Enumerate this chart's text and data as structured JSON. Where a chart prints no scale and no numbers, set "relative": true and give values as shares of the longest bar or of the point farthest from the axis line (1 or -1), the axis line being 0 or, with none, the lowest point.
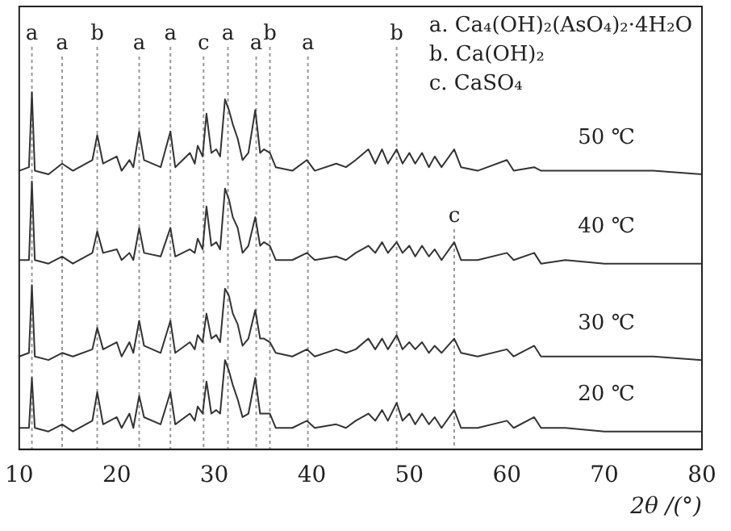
{
  "chart_data": {
    "type": "line",
    "relative": true,
    "xlabel": "2θ /(°)",
    "x": [
      10,
      11,
      11.3,
      11.6,
      13,
      14.4,
      15.5,
      17.5,
      18,
      18.6,
      20,
      20.5,
      21.3,
      21.7,
      22.3,
      22.8,
      24.5,
      25.5,
      26,
      27.5,
      28,
      28.3,
      28.8,
      29.2,
      29.7,
      30.2,
      30.6,
      31.1,
      31.5,
      31.9,
      32.4,
      32.9,
      33.5,
      34.2,
      34.7,
      35.1,
      35.7,
      36.3,
      38,
      39.5,
      40.3,
      42.5,
      43.5,
      44.5,
      45.8,
      46.5,
      47.2,
      47.8,
      48.7,
      49.3,
      50,
      50.6,
      51.3,
      52,
      52.6,
      53.3,
      54.6,
      55.3,
      57,
      60,
      60.7,
      62.8,
      63.5,
      66,
      70,
      75,
      80
    ],
    "xlim": [
      10,
      80
    ],
    "xticks": [
      10,
      20,
      30,
      40,
      50,
      60,
      70,
      80
    ],
    "series": [
      {
        "name": "20 ℃",
        "color": "#333333",
        "values": [
          0.06,
          0.06,
          0.2,
          0.06,
          0.05,
          0.07,
          0.05,
          0.08,
          0.16,
          0.07,
          0.09,
          0.06,
          0.1,
          0.06,
          0.15,
          0.09,
          0.07,
          0.16,
          0.07,
          0.1,
          0.08,
          0.12,
          0.1,
          0.19,
          0.1,
          0.11,
          0.1,
          0.25,
          0.22,
          0.18,
          0.14,
          0.09,
          0.1,
          0.2,
          0.1,
          0.1,
          0.1,
          0.06,
          0.06,
          0.08,
          0.06,
          0.07,
          0.06,
          0.08,
          0.1,
          0.08,
          0.11,
          0.08,
          0.13,
          0.08,
          0.1,
          0.07,
          0.1,
          0.07,
          0.09,
          0.06,
          0.11,
          0.06,
          0.06,
          0.08,
          0.06,
          0.09,
          0.06,
          0.06,
          0.05,
          0.05,
          0.05
        ]
      },
      {
        "name": "30 ℃",
        "color": "#333333",
        "values": [
          0.26,
          0.27,
          0.46,
          0.26,
          0.25,
          0.27,
          0.26,
          0.28,
          0.34,
          0.28,
          0.3,
          0.26,
          0.3,
          0.27,
          0.36,
          0.29,
          0.27,
          0.36,
          0.27,
          0.3,
          0.28,
          0.32,
          0.3,
          0.38,
          0.31,
          0.32,
          0.3,
          0.45,
          0.43,
          0.38,
          0.35,
          0.29,
          0.31,
          0.39,
          0.31,
          0.31,
          0.3,
          0.27,
          0.26,
          0.28,
          0.26,
          0.28,
          0.27,
          0.28,
          0.31,
          0.28,
          0.31,
          0.28,
          0.32,
          0.28,
          0.3,
          0.28,
          0.3,
          0.27,
          0.29,
          0.27,
          0.31,
          0.27,
          0.26,
          0.28,
          0.26,
          0.29,
          0.26,
          0.26,
          0.26,
          0.26,
          0.25
        ]
      },
      {
        "name": "40 ℃",
        "color": "#333333",
        "values": [
          0.53,
          0.53,
          0.75,
          0.53,
          0.52,
          0.54,
          0.52,
          0.55,
          0.61,
          0.55,
          0.56,
          0.53,
          0.55,
          0.53,
          0.62,
          0.55,
          0.54,
          0.62,
          0.54,
          0.56,
          0.55,
          0.59,
          0.56,
          0.68,
          0.57,
          0.58,
          0.56,
          0.73,
          0.7,
          0.65,
          0.62,
          0.55,
          0.57,
          0.65,
          0.57,
          0.58,
          0.57,
          0.53,
          0.53,
          0.55,
          0.53,
          0.54,
          0.53,
          0.55,
          0.57,
          0.55,
          0.58,
          0.55,
          0.58,
          0.55,
          0.57,
          0.54,
          0.57,
          0.54,
          0.56,
          0.53,
          0.58,
          0.53,
          0.53,
          0.55,
          0.53,
          0.55,
          0.52,
          0.53,
          0.52,
          0.52,
          0.52
        ]
      },
      {
        "name": "50 ℃",
        "color": "#333333",
        "values": [
          0.78,
          0.79,
          1.0,
          0.78,
          0.77,
          0.8,
          0.78,
          0.81,
          0.88,
          0.8,
          0.82,
          0.78,
          0.81,
          0.79,
          0.89,
          0.81,
          0.79,
          0.89,
          0.79,
          0.83,
          0.8,
          0.85,
          0.82,
          0.94,
          0.83,
          0.84,
          0.82,
          0.98,
          0.95,
          0.91,
          0.87,
          0.81,
          0.83,
          0.95,
          0.83,
          0.84,
          0.83,
          0.79,
          0.78,
          0.81,
          0.78,
          0.8,
          0.79,
          0.81,
          0.84,
          0.8,
          0.84,
          0.8,
          0.84,
          0.8,
          0.83,
          0.8,
          0.83,
          0.79,
          0.82,
          0.79,
          0.84,
          0.79,
          0.78,
          0.81,
          0.78,
          0.79,
          0.78,
          0.78,
          0.78,
          0.78,
          0.77
        ]
      }
    ],
    "ref_lines": [
      {
        "axis": "x",
        "value": 11.3,
        "label": "a"
      },
      {
        "axis": "x",
        "value": 14.4,
        "label": "a"
      },
      {
        "axis": "x",
        "value": 18.0,
        "label": "b"
      },
      {
        "axis": "x",
        "value": 22.3,
        "label": "a"
      },
      {
        "axis": "x",
        "value": 25.5,
        "label": "a"
      },
      {
        "axis": "x",
        "value": 28.9,
        "label": "c"
      },
      {
        "axis": "x",
        "value": 31.4,
        "label": "a"
      },
      {
        "axis": "x",
        "value": 34.3,
        "label": "a"
      },
      {
        "axis": "x",
        "value": 35.7,
        "label": "b"
      },
      {
        "axis": "x",
        "value": 39.6,
        "label": "a"
      },
      {
        "axis": "x",
        "value": 48.7,
        "label": "b"
      },
      {
        "axis": "x",
        "value": 54.6,
        "label": "c"
      }
    ],
    "annotations": [
      "a. Ca₄(OH)₂(AsO₄)₂·4H₂O",
      "b. Ca(OH)₂",
      "c. CaSO₄"
    ],
    "grid": false,
    "legend": false,
    "marker": "none",
    "line_style": "solid"
  }
}
